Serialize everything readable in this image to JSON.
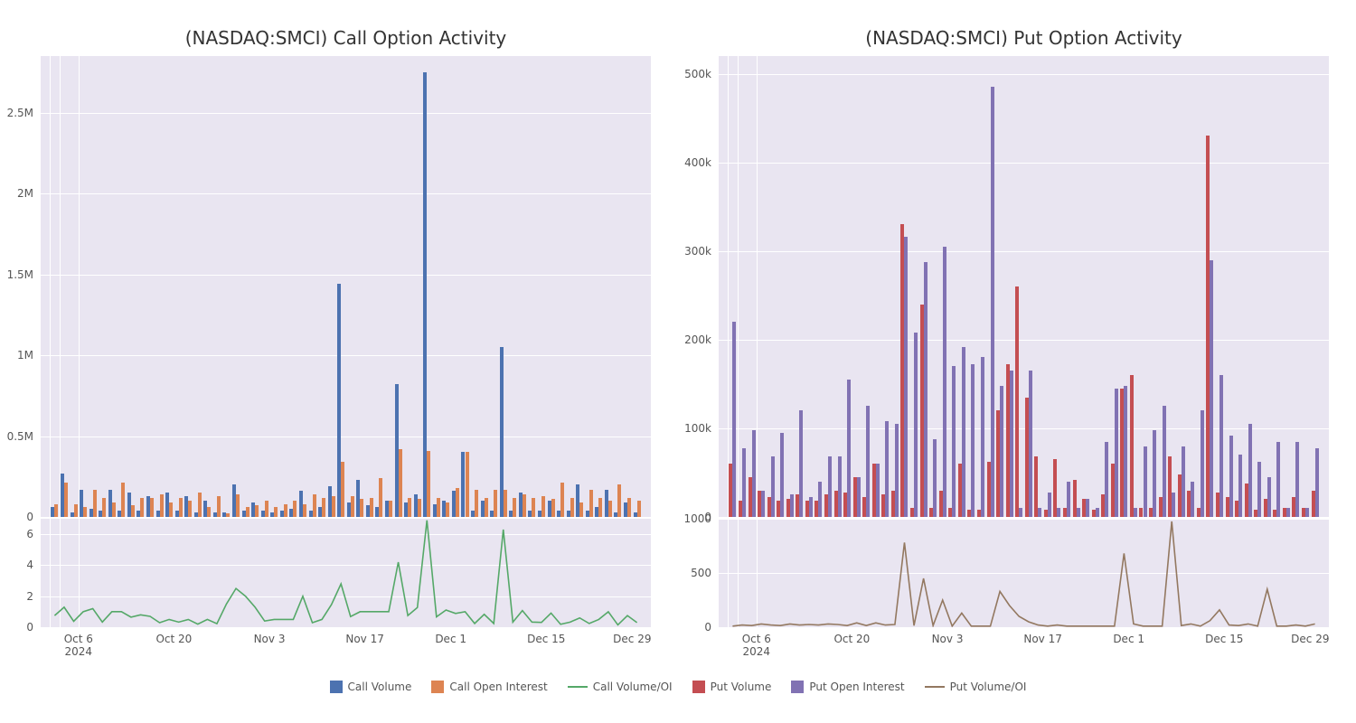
{
  "dates": [
    "Oct 2",
    "Oct 3",
    "Oct 4",
    "Oct 7",
    "Oct 8",
    "Oct 9",
    "Oct 10",
    "Oct 11",
    "Oct 14",
    "Oct 15",
    "Oct 16",
    "Oct 17",
    "Oct 18",
    "Oct 21",
    "Oct 22",
    "Oct 23",
    "Oct 24",
    "Oct 25",
    "Oct 28",
    "Oct 29",
    "Oct 30",
    "Oct 31",
    "Nov 1",
    "Nov 4",
    "Nov 5",
    "Nov 6",
    "Nov 7",
    "Nov 8",
    "Nov 11",
    "Nov 12",
    "Nov 13",
    "Nov 14",
    "Nov 15",
    "Nov 18",
    "Nov 19",
    "Nov 20",
    "Nov 21",
    "Nov 22",
    "Nov 25",
    "Nov 26",
    "Nov 27",
    "Nov 29",
    "Dec 2",
    "Dec 3",
    "Dec 4",
    "Dec 5",
    "Dec 6",
    "Dec 9",
    "Dec 10",
    "Dec 11",
    "Dec 12",
    "Dec 13",
    "Dec 16",
    "Dec 17",
    "Dec 18",
    "Dec 19",
    "Dec 20",
    "Dec 23",
    "Dec 24",
    "Dec 26",
    "Dec 27",
    "Dec 30"
  ],
  "x_tick_dates": [
    "Oct 6",
    "Oct 20",
    "Nov 3",
    "Nov 17",
    "Dec 1",
    "Dec 15",
    "Dec 29"
  ],
  "x_year_label": "2024",
  "legend": {
    "call_volume": "Call Volume",
    "call_oi": "Call Open Interest",
    "call_ratio": "Call Volume/OI",
    "put_volume": "Put Volume",
    "put_oi": "Put Open Interest",
    "put_ratio": "Put Volume/OI"
  },
  "colors": {
    "call_volume": "#4c72b0",
    "call_oi": "#dd8452",
    "call_ratio": "#55a868",
    "put_volume": "#c44e52",
    "put_oi": "#8172b3",
    "put_ratio": "#937860",
    "plot_bg": "#e9e5f1",
    "grid": "#ffffff",
    "text": "#555555"
  },
  "call_chart": {
    "title": "(NASDAQ:SMCI) Call Option Activity",
    "upper": {
      "ymax": 2850000,
      "yticks": [
        0,
        500000,
        1000000,
        1500000,
        2000000,
        2500000
      ],
      "ytick_labels": [
        "0",
        "0.5M",
        "1M",
        "1.5M",
        "2M",
        "2.5M"
      ],
      "volume": [
        60000,
        270000,
        30000,
        170000,
        50000,
        40000,
        170000,
        40000,
        150000,
        40000,
        130000,
        40000,
        150000,
        40000,
        130000,
        30000,
        100000,
        30000,
        30000,
        200000,
        40000,
        90000,
        40000,
        30000,
        40000,
        50000,
        160000,
        40000,
        60000,
        190000,
        1440000,
        90000,
        230000,
        70000,
        60000,
        100000,
        820000,
        90000,
        140000,
        2750000,
        80000,
        100000,
        160000,
        400000,
        40000,
        100000,
        40000,
        1050000,
        40000,
        150000,
        40000,
        40000,
        100000,
        40000,
        40000,
        200000,
        40000,
        60000,
        170000,
        30000,
        90000,
        30000
      ],
      "oi": [
        80000,
        210000,
        80000,
        60000,
        170000,
        120000,
        90000,
        210000,
        70000,
        120000,
        120000,
        140000,
        90000,
        120000,
        100000,
        150000,
        60000,
        130000,
        20000,
        140000,
        60000,
        70000,
        100000,
        60000,
        80000,
        100000,
        80000,
        140000,
        120000,
        130000,
        340000,
        130000,
        110000,
        120000,
        240000,
        100000,
        420000,
        120000,
        110000,
        410000,
        120000,
        90000,
        180000,
        400000,
        170000,
        120000,
        170000,
        170000,
        120000,
        140000,
        120000,
        130000,
        110000,
        210000,
        120000,
        90000,
        170000,
        120000,
        100000,
        200000,
        120000,
        100000
      ]
    },
    "lower": {
      "ymax": 7,
      "yticks": [
        0,
        2,
        4,
        6
      ],
      "ytick_labels": [
        "0",
        "2",
        "4",
        "6"
      ],
      "ratio": [
        0.75,
        1.29,
        0.38,
        1.0,
        1.2,
        0.33,
        1.0,
        1.0,
        0.65,
        0.8,
        0.7,
        0.29,
        0.5,
        0.33,
        0.5,
        0.2,
        0.5,
        0.23,
        1.5,
        2.5,
        2.0,
        1.29,
        0.4,
        0.5,
        0.5,
        0.5,
        2.0,
        0.29,
        0.5,
        1.46,
        2.8,
        0.69,
        1.0,
        1.0,
        1.0,
        1.0,
        4.2,
        0.75,
        1.27,
        6.9,
        0.67,
        1.11,
        0.89,
        1.0,
        0.24,
        0.83,
        0.24,
        6.3,
        0.33,
        1.07,
        0.33,
        0.31,
        0.91,
        0.19,
        0.33,
        0.6,
        0.24,
        0.5,
        1.0,
        0.15,
        0.75,
        0.3
      ]
    }
  },
  "put_chart": {
    "title": "(NASDAQ:SMCI) Put Option Activity",
    "upper": {
      "ymax": 520000,
      "yticks": [
        0,
        100000,
        200000,
        300000,
        400000,
        500000
      ],
      "ytick_labels": [
        "0",
        "100k",
        "200k",
        "300k",
        "400k",
        "500k"
      ],
      "volume": [
        60000,
        18000,
        45000,
        30000,
        22000,
        18000,
        20000,
        26000,
        18000,
        18000,
        25000,
        30000,
        28000,
        45000,
        22000,
        60000,
        26000,
        30000,
        330000,
        10000,
        240000,
        10000,
        30000,
        10000,
        60000,
        8000,
        8000,
        62000,
        120000,
        172000,
        260000,
        135000,
        68000,
        8000,
        65000,
        10000,
        42000,
        20000,
        8000,
        25000,
        60000,
        145000,
        160000,
        10000,
        10000,
        22000,
        68000,
        48000,
        30000,
        10000,
        430000,
        28000,
        22000,
        18000,
        38000,
        8000,
        20000,
        8000,
        10000,
        22000,
        10000,
        30000
      ],
      "oi": [
        220000,
        78000,
        98000,
        30000,
        68000,
        95000,
        25000,
        120000,
        22000,
        40000,
        68000,
        68000,
        155000,
        45000,
        125000,
        60000,
        108000,
        105000,
        316000,
        208000,
        288000,
        88000,
        305000,
        170000,
        192000,
        172000,
        180000,
        485000,
        148000,
        165000,
        10000,
        165000,
        10000,
        28000,
        10000,
        40000,
        10000,
        20000,
        10000,
        85000,
        145000,
        148000,
        10000,
        80000,
        98000,
        125000,
        28000,
        80000,
        40000,
        120000,
        290000,
        160000,
        92000,
        70000,
        105000,
        62000,
        45000,
        85000,
        10000,
        85000,
        10000,
        78000
      ]
    },
    "lower": {
      "ymax": 1000,
      "yticks": [
        0,
        500,
        1000
      ],
      "ytick_labels": [
        "0",
        "500",
        "1000"
      ],
      "ratio": [
        10,
        20,
        15,
        30,
        20,
        15,
        30,
        20,
        25,
        20,
        30,
        25,
        15,
        40,
        15,
        40,
        20,
        25,
        780,
        15,
        450,
        15,
        250,
        10,
        130,
        10,
        10,
        10,
        330,
        200,
        100,
        50,
        20,
        10,
        20,
        10,
        10,
        10,
        10,
        10,
        10,
        680,
        30,
        10,
        10,
        10,
        975,
        15,
        30,
        10,
        60,
        160,
        20,
        15,
        30,
        10,
        350,
        10,
        10,
        20,
        10,
        30
      ]
    }
  }
}
